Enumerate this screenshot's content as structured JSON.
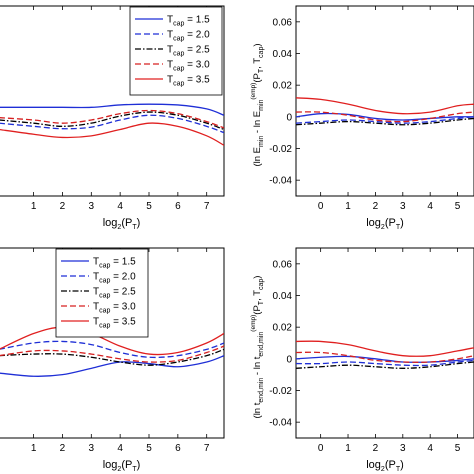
{
  "colors": {
    "t1_5": "#1f2fd6",
    "t2_0": "#1f2fd6",
    "t2_5": "#000000",
    "t3_0": "#d62020",
    "t3_5": "#e02020"
  },
  "chart_data": [
    {
      "type": "line",
      "panel": "top-left",
      "xlabel": {
        "base": "log",
        "sub": "2",
        "rest": "(P",
        "sub2": "T",
        "end": ")"
      },
      "xlim": [
        -0.2,
        7.6
      ],
      "x_ticks": [
        "1",
        "2",
        "3",
        "4",
        "5",
        "6",
        "7"
      ],
      "ylim": [
        -0.05,
        0.07
      ],
      "legend": {
        "position": "top-right",
        "entries": [
          {
            "prefix": "T",
            "sub": "cap",
            "suffix": " = 1.5",
            "style": "solid",
            "color_key": "t1_5"
          },
          {
            "prefix": "T",
            "sub": "cap",
            "suffix": " = 2.0",
            "style": "dashed",
            "color_key": "t2_0"
          },
          {
            "prefix": "T",
            "sub": "cap",
            "suffix": " = 2.5",
            "style": "dashdot",
            "color_key": "t2_5"
          },
          {
            "prefix": "T",
            "sub": "cap",
            "suffix": " = 3.0",
            "style": "dashed",
            "color_key": "t3_0"
          },
          {
            "prefix": "T",
            "sub": "cap",
            "suffix": " = 3.5",
            "style": "solid",
            "color_key": "t3_5"
          }
        ]
      },
      "series": [
        {
          "style": "solid",
          "color_key": "t1_5",
          "x": [
            -0.2,
            1,
            2,
            3,
            4,
            5,
            6,
            7,
            7.6
          ],
          "y": [
            0.006,
            0.006,
            0.006,
            0.006,
            0.0075,
            0.008,
            0.0075,
            0.005,
            0.001
          ]
        },
        {
          "style": "dashed",
          "color_key": "t2_0",
          "x": [
            -0.2,
            1,
            2,
            3,
            4,
            5,
            6,
            7,
            7.6
          ],
          "y": [
            -0.004,
            -0.006,
            -0.0075,
            -0.0065,
            -0.002,
            0.001,
            -0.001,
            -0.006,
            -0.01
          ]
        },
        {
          "style": "dashdot",
          "color_key": "t2_5",
          "x": [
            -0.2,
            1,
            2,
            3,
            4,
            5,
            6,
            7,
            7.6
          ],
          "y": [
            -0.002,
            -0.004,
            -0.006,
            -0.004,
            0.0005,
            0.003,
            0.001,
            -0.004,
            -0.008
          ]
        },
        {
          "style": "dashed",
          "color_key": "t3_0",
          "x": [
            -0.2,
            1,
            2,
            3,
            4,
            5,
            6,
            7,
            7.6
          ],
          "y": [
            -0.0005,
            -0.002,
            -0.004,
            -0.002,
            0.002,
            0.004,
            0.002,
            -0.003,
            -0.007
          ]
        },
        {
          "style": "solid",
          "color_key": "t3_5",
          "x": [
            -0.2,
            1,
            2,
            3,
            4,
            5,
            6,
            7,
            7.6
          ],
          "y": [
            -0.008,
            -0.011,
            -0.013,
            -0.012,
            -0.008,
            -0.004,
            -0.006,
            -0.012,
            -0.018
          ]
        }
      ]
    },
    {
      "type": "line",
      "panel": "top-right",
      "xlabel": {
        "base": "log",
        "sub": "2",
        "rest": "(P",
        "sub2": "T",
        "end": ")"
      },
      "ylabel": "(ln E_min - ln E_min^(emp))(P_T, T_cap)",
      "xlim": [
        -0.9,
        5.6
      ],
      "x_ticks": [
        "0",
        "1",
        "2",
        "3",
        "4",
        "5"
      ],
      "ylim": [
        -0.05,
        0.07
      ],
      "y_ticks": [
        "0.06",
        "0.04",
        "0.02",
        "0",
        "-0.02",
        "-0.04"
      ],
      "series": [
        {
          "style": "solid",
          "color_key": "t1_5",
          "x": [
            -0.9,
            0,
            1,
            2,
            3,
            4,
            5,
            5.6
          ],
          "y": [
            0.0,
            0.002,
            0.0015,
            -0.001,
            -0.002,
            -0.001,
            0.0,
            0.0
          ]
        },
        {
          "style": "dashed",
          "color_key": "t2_0",
          "x": [
            -0.9,
            0,
            1,
            2,
            3,
            4,
            5,
            5.6
          ],
          "y": [
            -0.004,
            -0.003,
            -0.002,
            -0.003,
            -0.004,
            -0.003,
            -0.001,
            0.0
          ]
        },
        {
          "style": "dashdot",
          "color_key": "t2_5",
          "x": [
            -0.9,
            0,
            1,
            2,
            3,
            4,
            5,
            5.6
          ],
          "y": [
            -0.005,
            -0.004,
            -0.003,
            -0.004,
            -0.005,
            -0.004,
            -0.002,
            -0.001
          ]
        },
        {
          "style": "dashed",
          "color_key": "t3_0",
          "x": [
            -0.9,
            0,
            1,
            2,
            3,
            4,
            5,
            5.6
          ],
          "y": [
            0.003,
            0.003,
            0.001,
            -0.002,
            -0.003,
            -0.001,
            0.002,
            0.003
          ]
        },
        {
          "style": "solid",
          "color_key": "t3_5",
          "x": [
            -0.9,
            0,
            1,
            2,
            3,
            4,
            5,
            5.6
          ],
          "y": [
            0.012,
            0.011,
            0.008,
            0.004,
            0.002,
            0.003,
            0.007,
            0.008
          ]
        }
      ]
    },
    {
      "type": "line",
      "panel": "bottom-left",
      "xlabel": {
        "base": "log",
        "sub": "2",
        "rest": "(P",
        "sub2": "T",
        "end": ")"
      },
      "xlim": [
        -0.2,
        7.6
      ],
      "x_ticks": [
        "1",
        "2",
        "3",
        "4",
        "5",
        "6",
        "7"
      ],
      "ylim": [
        -0.05,
        0.07
      ],
      "legend": {
        "position": "top-center",
        "entries": [
          {
            "prefix": "T",
            "sub": "cap",
            "suffix": " = 1.5",
            "style": "solid",
            "color_key": "t1_5"
          },
          {
            "prefix": "T",
            "sub": "cap",
            "suffix": " = 2.0",
            "style": "dashed",
            "color_key": "t2_0"
          },
          {
            "prefix": "T",
            "sub": "cap",
            "suffix": " = 2.5",
            "style": "dashdot",
            "color_key": "t2_5"
          },
          {
            "prefix": "T",
            "sub": "cap",
            "suffix": " = 3.0",
            "style": "dashed",
            "color_key": "t3_0"
          },
          {
            "prefix": "T",
            "sub": "cap",
            "suffix": " = 3.5",
            "style": "solid",
            "color_key": "t3_5"
          }
        ]
      },
      "series": [
        {
          "style": "solid",
          "color_key": "t1_5",
          "x": [
            -0.2,
            1,
            2,
            3,
            4,
            5,
            6,
            7,
            7.6
          ],
          "y": [
            -0.009,
            -0.011,
            -0.01,
            -0.006,
            -0.002,
            -0.003,
            -0.005,
            -0.002,
            0.002
          ]
        },
        {
          "style": "dashed",
          "color_key": "t2_0",
          "x": [
            -0.2,
            1,
            2,
            3,
            4,
            5,
            6,
            7,
            7.6
          ],
          "y": [
            0.006,
            0.01,
            0.011,
            0.009,
            0.004,
            0.001,
            0.002,
            0.006,
            0.01
          ]
        },
        {
          "style": "dashdot",
          "color_key": "t2_5",
          "x": [
            -0.2,
            1,
            2,
            3,
            4,
            5,
            6,
            7,
            7.6
          ],
          "y": [
            0.002,
            0.003,
            0.003,
            0.001,
            -0.002,
            -0.004,
            -0.002,
            0.002,
            0.006
          ]
        },
        {
          "style": "dashed",
          "color_key": "t3_0",
          "x": [
            -0.2,
            1,
            2,
            3,
            4,
            5,
            6,
            7,
            7.6
          ],
          "y": [
            0.002,
            0.005,
            0.005,
            0.003,
            0.0,
            -0.002,
            -0.001,
            0.004,
            0.008
          ]
        },
        {
          "style": "solid",
          "color_key": "t3_5",
          "x": [
            -0.2,
            1,
            2,
            3,
            4,
            5,
            6,
            7,
            7.6
          ],
          "y": [
            0.006,
            0.016,
            0.02,
            0.016,
            0.008,
            0.003,
            0.004,
            0.01,
            0.016
          ]
        }
      ]
    },
    {
      "type": "line",
      "panel": "bottom-right",
      "xlabel": {
        "base": "log",
        "sub": "2",
        "rest": "(P",
        "sub2": "T",
        "end": ")"
      },
      "ylabel": "(ln t_end,min - ln t_end,min^(emp))(P_T, T_cap)",
      "xlim": [
        -0.9,
        5.6
      ],
      "x_ticks": [
        "0",
        "1",
        "2",
        "3",
        "4",
        "5"
      ],
      "ylim": [
        -0.05,
        0.07
      ],
      "y_ticks": [
        "0.06",
        "0.04",
        "0.02",
        "0",
        "-0.02",
        "-0.04"
      ],
      "series": [
        {
          "style": "solid",
          "color_key": "t1_5",
          "x": [
            -0.9,
            0,
            1,
            2,
            3,
            4,
            5,
            5.6
          ],
          "y": [
            0.0,
            0.001,
            0.0015,
            0.0,
            -0.002,
            -0.002,
            -0.001,
            0.0
          ]
        },
        {
          "style": "dashed",
          "color_key": "t2_0",
          "x": [
            -0.9,
            0,
            1,
            2,
            3,
            4,
            5,
            5.6
          ],
          "y": [
            -0.003,
            -0.003,
            -0.002,
            -0.003,
            -0.004,
            -0.004,
            -0.002,
            -0.001
          ]
        },
        {
          "style": "dashdot",
          "color_key": "t2_5",
          "x": [
            -0.9,
            0,
            1,
            2,
            3,
            4,
            5,
            5.6
          ],
          "y": [
            -0.006,
            -0.005,
            -0.004,
            -0.005,
            -0.006,
            -0.005,
            -0.003,
            -0.002
          ]
        },
        {
          "style": "dashed",
          "color_key": "t3_0",
          "x": [
            -0.9,
            0,
            1,
            2,
            3,
            4,
            5,
            5.6
          ],
          "y": [
            0.004,
            0.004,
            0.002,
            -0.001,
            -0.002,
            -0.002,
            0.0,
            0.002
          ]
        },
        {
          "style": "solid",
          "color_key": "t3_5",
          "x": [
            -0.9,
            0,
            1,
            2,
            3,
            4,
            5,
            5.6
          ],
          "y": [
            0.011,
            0.011,
            0.009,
            0.005,
            0.002,
            0.002,
            0.005,
            0.007
          ]
        }
      ]
    }
  ]
}
